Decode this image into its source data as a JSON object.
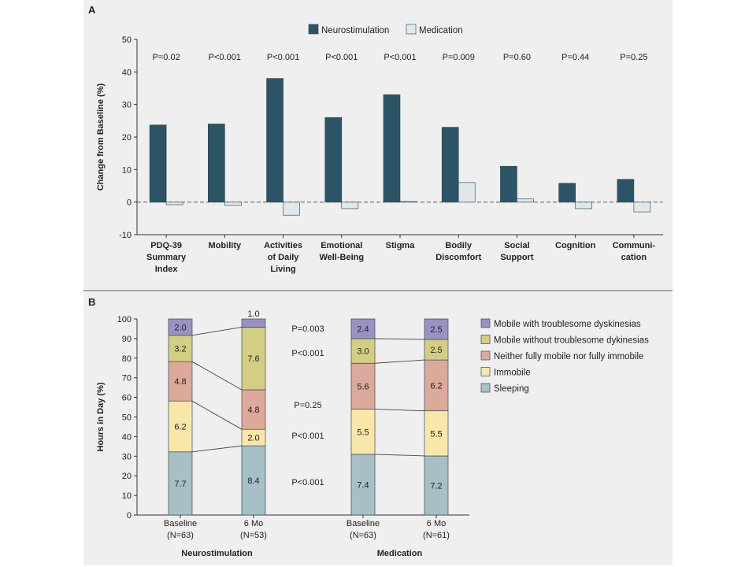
{
  "colors": {
    "panel_bg": "#efefef",
    "neuro": "#2b5566",
    "med": "#dfe8eb",
    "seg_mobile_dysk": "#9a92c4",
    "seg_mobile_nodysk": "#d3ce82",
    "seg_neither": "#dca99b",
    "seg_immobile": "#f8e7a8",
    "seg_sleeping": "#a6c0c6",
    "axis": "#333333",
    "text": "#222222"
  },
  "chart_data": [
    {
      "panel": "A",
      "type": "bar",
      "ylabel": "Change from Baseline (%)",
      "ylim": [
        -10,
        50
      ],
      "yticks": [
        -10,
        0,
        10,
        20,
        30,
        40,
        50
      ],
      "baseline_dashed_at": 0,
      "legend_position": "top",
      "categories": [
        [
          "PDQ-39",
          "Summary",
          "Index"
        ],
        [
          "Mobility"
        ],
        [
          "Activities",
          "of Daily",
          "Living"
        ],
        [
          "Emotional",
          "Well-Being"
        ],
        [
          "Stigma"
        ],
        [
          "Bodily",
          "Discomfort"
        ],
        [
          "Social",
          "Support"
        ],
        [
          "Cognition"
        ],
        [
          "Communi-",
          "cation"
        ]
      ],
      "p_values": [
        "P=0.02",
        "P<0.001",
        "P<0.001",
        "P<0.001",
        "P<0.001",
        "P=0.009",
        "P=0.60",
        "P=0.44",
        "P=0.25"
      ],
      "series": [
        {
          "name": "Neurostimulation",
          "values": [
            23.7,
            24,
            38,
            26,
            33,
            23,
            11,
            5.8,
            7
          ]
        },
        {
          "name": "Medication",
          "values": [
            -0.8,
            -1,
            -4,
            -2,
            0.2,
            6,
            1,
            -2,
            -3
          ]
        }
      ]
    },
    {
      "panel": "B",
      "type": "bar",
      "stacked": true,
      "ylabel": "Hours in Day (%)",
      "ylim": [
        0,
        100
      ],
      "yticks": [
        0,
        10,
        20,
        30,
        40,
        50,
        60,
        70,
        80,
        90,
        100
      ],
      "legend_position": "right",
      "series_names": [
        "Mobile with troublesome dyskinesias",
        "Mobile without troublesome dykinesias",
        "Neither fully mobile nor fully immobile",
        "Immobile",
        "Sleeping"
      ],
      "groups": [
        {
          "name": "Neurostimulation",
          "bars": [
            {
              "label": "Baseline",
              "n": "(N=63)",
              "hours": [
                2.0,
                3.2,
                4.8,
                6.2,
                7.7
              ],
              "labels": [
                "2.0",
                "3.2",
                "4.8",
                "6.2",
                "7.7"
              ]
            },
            {
              "label": "6 Mo",
              "n": "(N=53)",
              "hours": [
                1.0,
                7.6,
                4.8,
                2.0,
                8.4
              ],
              "labels": [
                "1.0",
                "7.6",
                "4.8",
                "2.0",
                "8.4"
              ]
            }
          ]
        },
        {
          "name": "Medication",
          "bars": [
            {
              "label": "Baseline",
              "n": "(N=63)",
              "hours": [
                2.4,
                3.0,
                5.6,
                5.5,
                7.4
              ],
              "labels": [
                "2.4",
                "3.0",
                "5.6",
                "5.5",
                "7.4"
              ]
            },
            {
              "label": "6 Mo",
              "n": "(N=61)",
              "hours": [
                2.5,
                2.5,
                6.2,
                5.5,
                7.2
              ],
              "labels": [
                "2.5",
                "2.5",
                "6.2",
                "5.5",
                "7.2"
              ]
            }
          ]
        }
      ],
      "p_values": [
        "P=0.003",
        "P<0.001",
        "P=0.25",
        "P<0.001",
        "P<0.001"
      ]
    }
  ]
}
